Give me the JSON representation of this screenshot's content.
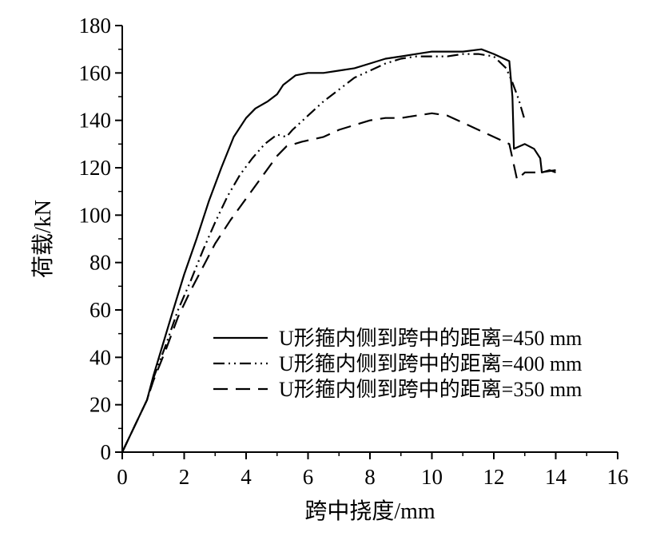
{
  "chart_data": {
    "type": "line",
    "xlabel": "跨中挠度/mm",
    "ylabel": "荷载/kN",
    "xlim": [
      0,
      16
    ],
    "ylim": [
      0,
      180
    ],
    "xticks": [
      0,
      2,
      4,
      6,
      8,
      10,
      12,
      14,
      16
    ],
    "yticks": [
      0,
      20,
      40,
      60,
      80,
      100,
      120,
      140,
      160,
      180
    ],
    "grid": false,
    "legend_position": "bottom-right",
    "series": [
      {
        "name": "U形箍内侧到跨中的距离=450 mm",
        "style": "solid",
        "points": [
          [
            0,
            0
          ],
          [
            0.8,
            22
          ],
          [
            1.0,
            32
          ],
          [
            1.3,
            45
          ],
          [
            1.6,
            58
          ],
          [
            2.0,
            75
          ],
          [
            2.4,
            90
          ],
          [
            2.8,
            106
          ],
          [
            3.2,
            120
          ],
          [
            3.6,
            133
          ],
          [
            4.0,
            141
          ],
          [
            4.3,
            145
          ],
          [
            4.7,
            148
          ],
          [
            5.0,
            151
          ],
          [
            5.2,
            155
          ],
          [
            5.4,
            157
          ],
          [
            5.6,
            159
          ],
          [
            6.0,
            160
          ],
          [
            6.5,
            160
          ],
          [
            7.0,
            161
          ],
          [
            7.5,
            162
          ],
          [
            8.0,
            164
          ],
          [
            8.5,
            166
          ],
          [
            9.0,
            167
          ],
          [
            9.5,
            168
          ],
          [
            10.0,
            169
          ],
          [
            10.5,
            169
          ],
          [
            11.0,
            169
          ],
          [
            11.6,
            170
          ],
          [
            12.0,
            168
          ],
          [
            12.5,
            165
          ],
          [
            12.6,
            150
          ],
          [
            12.65,
            128
          ],
          [
            13.0,
            130
          ],
          [
            13.3,
            128
          ],
          [
            13.5,
            124
          ],
          [
            13.55,
            118
          ],
          [
            13.8,
            119
          ],
          [
            14.0,
            118
          ]
        ]
      },
      {
        "name": "U形箍内侧到跨中的距离=400 mm",
        "style": "dash-dot-dot",
        "points": [
          [
            0,
            0
          ],
          [
            0.8,
            22
          ],
          [
            1.0,
            31
          ],
          [
            1.4,
            45
          ],
          [
            1.8,
            60
          ],
          [
            2.2,
            72
          ],
          [
            2.6,
            85
          ],
          [
            3.0,
            97
          ],
          [
            3.4,
            108
          ],
          [
            3.8,
            117
          ],
          [
            4.2,
            124
          ],
          [
            4.6,
            130
          ],
          [
            5.0,
            134
          ],
          [
            5.3,
            133
          ],
          [
            5.5,
            136
          ],
          [
            6.0,
            142
          ],
          [
            6.5,
            148
          ],
          [
            7.0,
            153
          ],
          [
            7.5,
            158
          ],
          [
            8.0,
            161
          ],
          [
            8.5,
            164
          ],
          [
            9.0,
            166
          ],
          [
            9.5,
            167
          ],
          [
            10.0,
            167
          ],
          [
            10.5,
            167
          ],
          [
            11.0,
            168
          ],
          [
            11.5,
            168
          ],
          [
            12.0,
            167
          ],
          [
            12.4,
            162
          ],
          [
            12.6,
            156
          ],
          [
            12.8,
            149
          ],
          [
            13.0,
            140
          ]
        ]
      },
      {
        "name": "U形箍内侧到跨中的距离=350 mm",
        "style": "dashed",
        "points": [
          [
            0,
            0
          ],
          [
            0.8,
            22
          ],
          [
            1.0,
            30
          ],
          [
            1.4,
            43
          ],
          [
            1.8,
            57
          ],
          [
            2.2,
            68
          ],
          [
            2.6,
            78
          ],
          [
            3.0,
            88
          ],
          [
            3.5,
            98
          ],
          [
            4.0,
            107
          ],
          [
            4.5,
            116
          ],
          [
            5.0,
            125
          ],
          [
            5.3,
            129
          ],
          [
            5.8,
            131
          ],
          [
            6.5,
            133
          ],
          [
            7.0,
            136
          ],
          [
            7.5,
            138
          ],
          [
            8.0,
            140
          ],
          [
            8.5,
            141
          ],
          [
            9.0,
            141
          ],
          [
            9.5,
            142
          ],
          [
            10.0,
            143
          ],
          [
            10.5,
            142
          ],
          [
            11.0,
            139
          ],
          [
            11.5,
            136
          ],
          [
            12.0,
            133
          ],
          [
            12.5,
            130
          ],
          [
            12.6,
            124
          ],
          [
            12.75,
            115
          ],
          [
            13.0,
            118
          ],
          [
            13.5,
            118
          ],
          [
            14.0,
            119
          ]
        ]
      }
    ]
  }
}
